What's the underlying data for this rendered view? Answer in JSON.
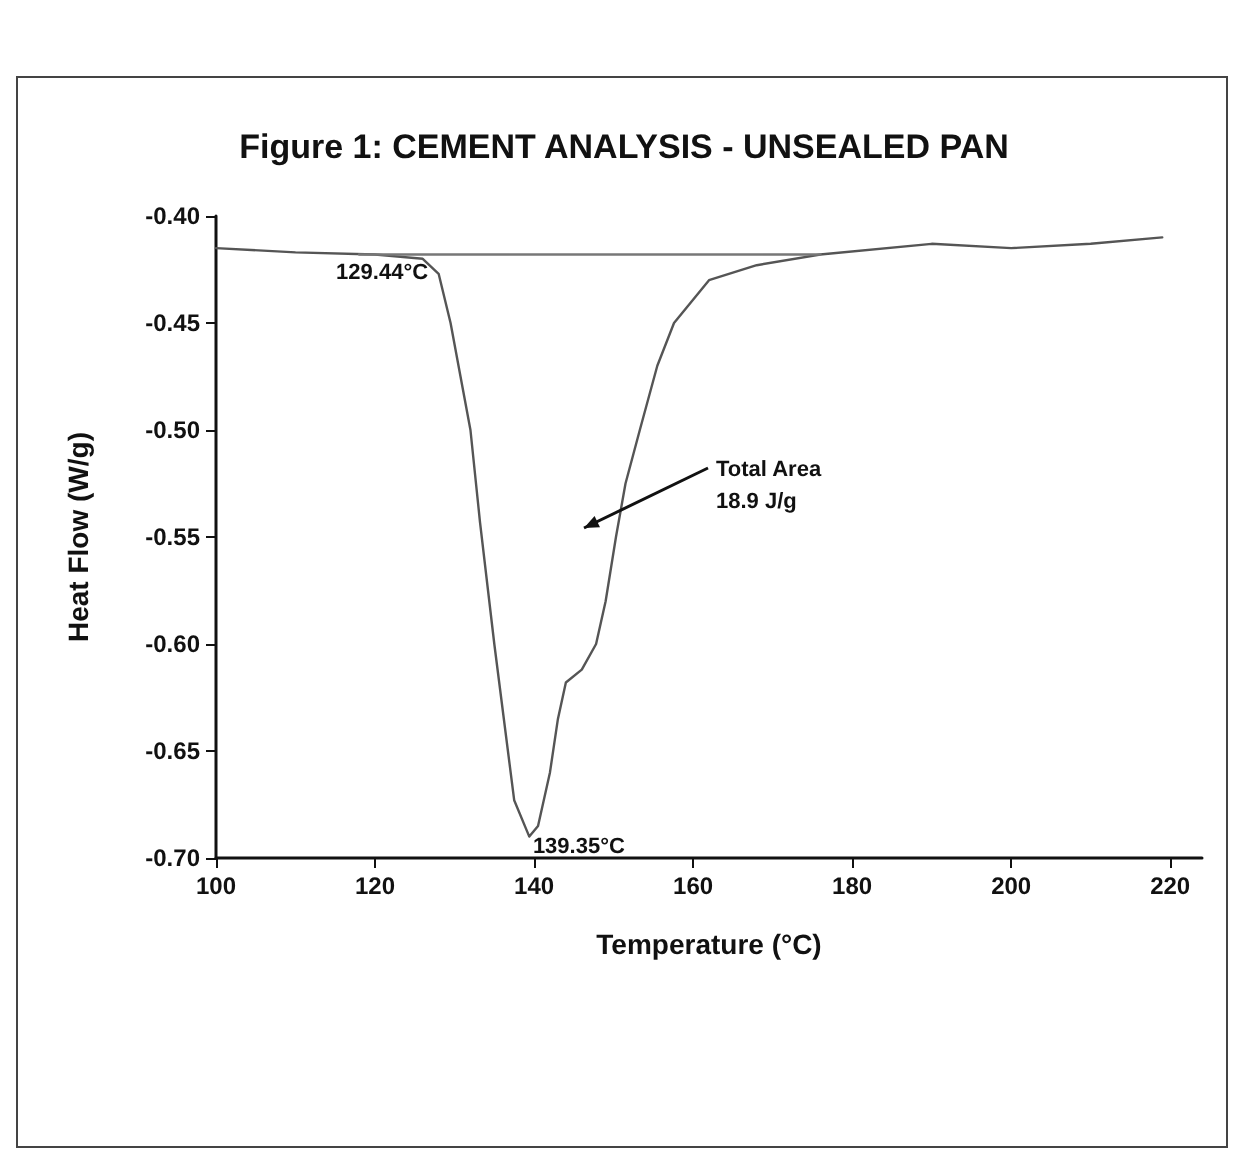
{
  "chart_data": {
    "type": "line",
    "title": "Figure 1: CEMENT ANALYSIS - UNSEALED PAN",
    "xlabel": "Temperature (°C)",
    "ylabel": "Heat Flow (W/g)",
    "xlim": [
      100,
      224
    ],
    "xticks": [
      100,
      120,
      140,
      160,
      180,
      200,
      220
    ],
    "ylim": [
      -0.7,
      -0.4
    ],
    "yticks": [
      {
        "value": -0.7,
        "label": "-0.70"
      },
      {
        "value": -0.65,
        "label": "-0.65"
      },
      {
        "value": -0.6,
        "label": "-0.60"
      },
      {
        "value": -0.55,
        "label": "-0.55"
      },
      {
        "value": -0.5,
        "label": "-0.50"
      },
      {
        "value": -0.45,
        "label": "-0.45"
      },
      {
        "value": -0.4,
        "label": "-0.40"
      }
    ],
    "grid": false,
    "marker": "none",
    "line_style": "solid",
    "series": [
      {
        "color": "#555555",
        "x": [
          100,
          110,
          120,
          126,
          128,
          129.5,
          131,
          132,
          133.2,
          135,
          137.5,
          139.4,
          140.5,
          142,
          143,
          144,
          146,
          147.8,
          149,
          150.3,
          151.5,
          153.3,
          155.5,
          157.6,
          162,
          168,
          176,
          190,
          200,
          210,
          219
        ],
        "values": [
          -0.415,
          -0.417,
          -0.418,
          -0.42,
          -0.427,
          -0.45,
          -0.48,
          -0.5,
          -0.543,
          -0.6,
          -0.673,
          -0.69,
          -0.685,
          -0.66,
          -0.635,
          -0.618,
          -0.612,
          -0.6,
          -0.58,
          -0.55,
          -0.525,
          -0.5,
          -0.47,
          -0.45,
          -0.43,
          -0.423,
          -0.418,
          -0.413,
          -0.415,
          -0.413,
          -0.41
        ]
      },
      {
        "color": "#777777",
        "x": [
          118,
          176
        ],
        "values": [
          -0.418,
          -0.418
        ]
      }
    ],
    "annotations": [
      {
        "text": "129.44°C",
        "x": 129.44,
        "y": -0.418
      },
      {
        "text": "139.35°C",
        "x": 139.35,
        "y": -0.69
      },
      "Total Area\n18.9 J/g"
    ]
  }
}
